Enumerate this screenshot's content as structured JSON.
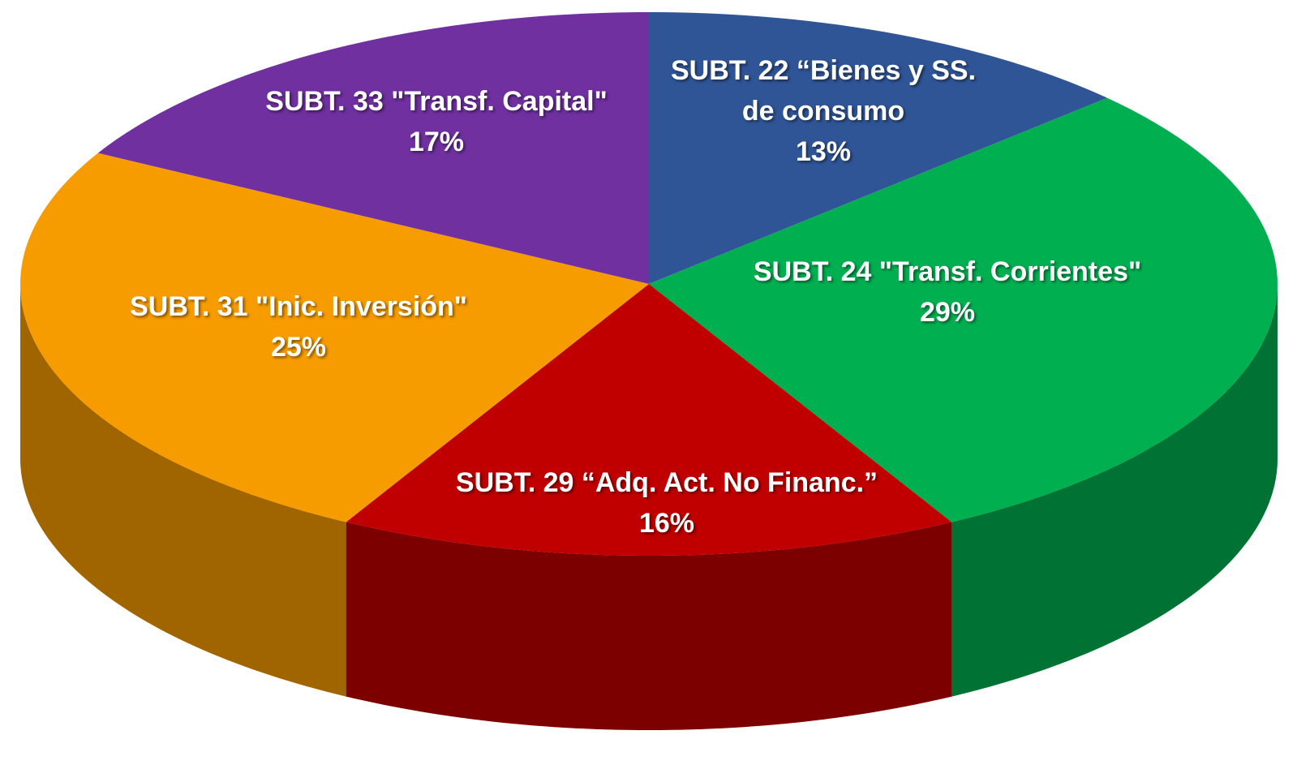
{
  "chart_data": {
    "type": "pie",
    "categories": [
      "SUBT. 22 “Bienes y SS. de consumo",
      "SUBT. 24 \"Transf. Corrientes\"",
      "SUBT. 29 “Adq. Act. No Financ.”",
      "SUBT. 31 \"Inic. Inversión\"",
      "SUBT. 33 \"Transf. Capital\""
    ],
    "values": [
      13,
      29,
      16,
      25,
      17
    ],
    "value_labels": [
      "13%",
      "29%",
      "16%",
      "25%",
      "17%"
    ],
    "colors": [
      "#2f5597",
      "#00b050",
      "#c00000",
      "#f79c00",
      "#7030a0"
    ]
  }
}
